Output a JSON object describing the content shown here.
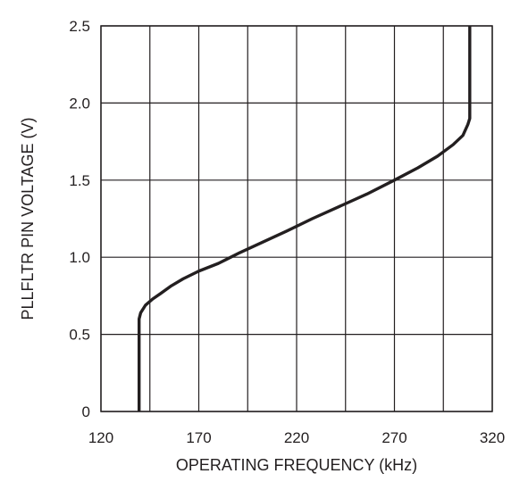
{
  "chart_data": {
    "type": "line",
    "xlabel": "OPERATING FREQUENCY (kHz)",
    "ylabel": "PLLFLTR PIN VOLTAGE (V)",
    "xlim": [
      120,
      320
    ],
    "ylim": [
      0,
      2.5
    ],
    "x_ticks": [
      120,
      145,
      170,
      195,
      220,
      245,
      270,
      295,
      320
    ],
    "x_tick_labels": [
      "120",
      "170",
      "220",
      "270",
      "320"
    ],
    "x_tick_label_values": [
      120,
      170,
      220,
      270,
      320
    ],
    "y_ticks": [
      0,
      0.5,
      1.0,
      1.5,
      2.0,
      2.5
    ],
    "y_tick_labels": [
      "0",
      "0.5",
      "1.0",
      "1.5",
      "2.0",
      "2.5"
    ],
    "grid": true,
    "series": [
      {
        "x": [
          139.5,
          139.5,
          139.5,
          140.3,
          142.8,
          146.5,
          150.5,
          156,
          162,
          170,
          180,
          191,
          203,
          215,
          228,
          242,
          256,
          270,
          282,
          292,
          300,
          305,
          307.5,
          308.5,
          308.5,
          308.5
        ],
        "y": [
          0,
          0.3,
          0.6,
          0.64,
          0.69,
          0.73,
          0.765,
          0.815,
          0.86,
          0.91,
          0.96,
          1.03,
          1.1,
          1.17,
          1.25,
          1.33,
          1.41,
          1.5,
          1.58,
          1.655,
          1.73,
          1.79,
          1.86,
          1.9,
          2.2,
          2.5
        ]
      }
    ]
  }
}
